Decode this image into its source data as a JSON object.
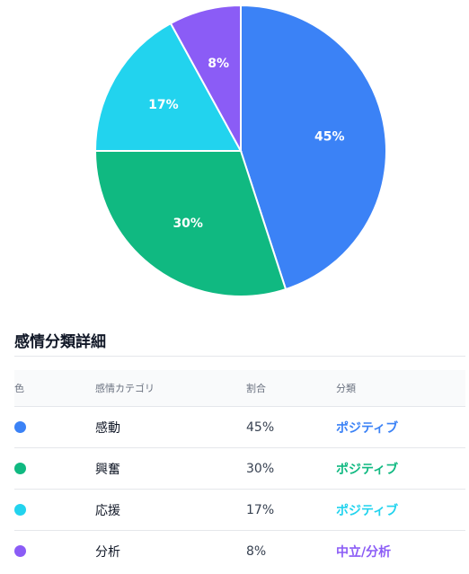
{
  "chart_data": {
    "type": "pie",
    "categories": [
      "感動",
      "興奮",
      "応援",
      "分析"
    ],
    "values": [
      45,
      30,
      17,
      8
    ],
    "labels": [
      "45%",
      "30%",
      "17%",
      "8%"
    ],
    "colors": [
      "#3b82f6",
      "#10b981",
      "#22d3ee",
      "#8b5cf6"
    ],
    "start": "12 o'clock",
    "direction": "clockwise",
    "title": "",
    "legend": "none"
  },
  "section": {
    "title": "感情分類詳細"
  },
  "table": {
    "headers": {
      "color": "色",
      "category": "感情カテゴリ",
      "ratio": "割合",
      "classification": "分類"
    },
    "rows": [
      {
        "category": "感動",
        "ratio": "45%",
        "classification": "ポジティブ",
        "color": "#3b82f6"
      },
      {
        "category": "興奮",
        "ratio": "30%",
        "classification": "ポジティブ",
        "color": "#10b981"
      },
      {
        "category": "応援",
        "ratio": "17%",
        "classification": "ポジティブ",
        "color": "#22d3ee"
      },
      {
        "category": "分析",
        "ratio": "8%",
        "classification": "中立/分析",
        "color": "#8b5cf6"
      }
    ]
  }
}
